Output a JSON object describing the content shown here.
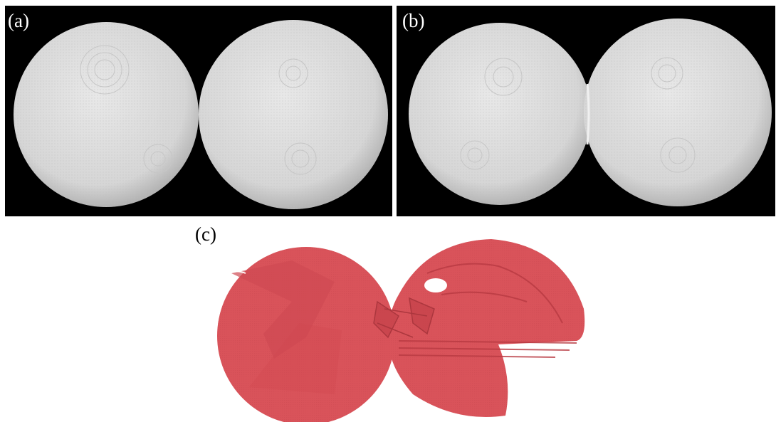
{
  "panels": [
    {
      "label": "(a)",
      "content": "sphere-pair-render"
    },
    {
      "label": "(b)",
      "content": "sphere-pair-render"
    },
    {
      "label": "(c)",
      "content": "fractured-sphere-pair-render"
    }
  ],
  "colors": {
    "background_dark": "#000000",
    "sphere": "#dcdcdc",
    "sphere_shadow": "#a8a8a8",
    "fracture": "#d9535a",
    "fracture_edge": "#b83a42"
  }
}
